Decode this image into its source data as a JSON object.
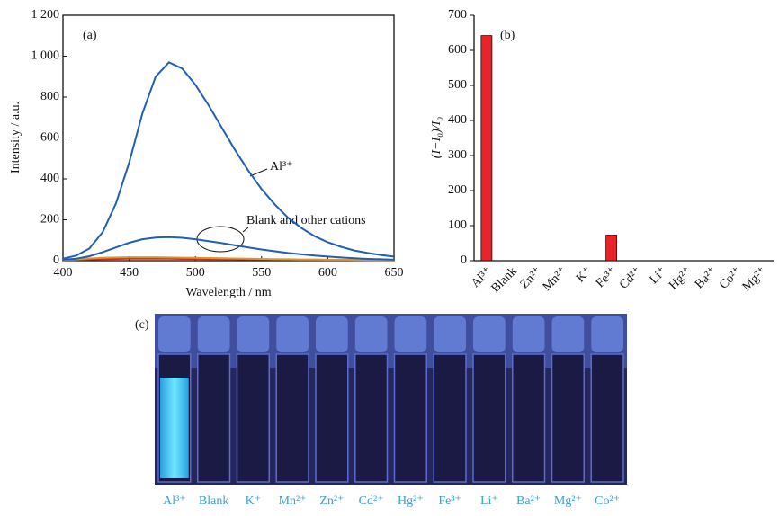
{
  "chart_data": [
    {
      "type": "line",
      "panel_label": "(a)",
      "xlabel": "Wavelength / nm",
      "ylabel": "Intensity / a.u.",
      "x": [
        400,
        410,
        420,
        430,
        440,
        450,
        460,
        470,
        480,
        490,
        500,
        510,
        520,
        530,
        540,
        550,
        560,
        570,
        580,
        590,
        600,
        610,
        620,
        630,
        640,
        650
      ],
      "series": [
        {
          "color": "#1f5fb4",
          "values": [
            10,
            25,
            60,
            140,
            280,
            480,
            720,
            900,
            970,
            940,
            860,
            760,
            650,
            540,
            440,
            350,
            275,
            210,
            160,
            120,
            90,
            68,
            50,
            38,
            28,
            20
          ]
        },
        {
          "color": "#1f5fb4",
          "values": [
            5,
            10,
            22,
            42,
            65,
            88,
            105,
            113,
            115,
            112,
            105,
            96,
            86,
            75,
            65,
            55,
            46,
            38,
            31,
            25,
            20,
            16,
            12,
            9,
            7,
            5
          ]
        },
        {
          "color": "#e0952a",
          "values": [
            4,
            7,
            11,
            14,
            16,
            17,
            17,
            17,
            16,
            15,
            14,
            13,
            12,
            11,
            10,
            9,
            8,
            7,
            6,
            6,
            5,
            5,
            4,
            4,
            3,
            3
          ]
        },
        {
          "color": "#c0302a",
          "values": [
            2,
            4,
            6,
            8,
            9,
            10,
            10,
            10,
            10,
            9,
            9,
            8,
            8,
            7,
            6,
            6,
            5,
            5,
            4,
            4,
            3,
            3,
            3,
            2,
            2,
            2
          ]
        }
      ],
      "annotations": [
        "Al³⁺",
        "Blank and other cations"
      ],
      "xlim": [
        400,
        650
      ],
      "xticks": [
        400,
        450,
        500,
        550,
        600,
        650
      ],
      "ylim": [
        0,
        1200
      ],
      "yticks": [
        0,
        200,
        400,
        600,
        800,
        {
          "value": 1000,
          "label": "1 000"
        },
        {
          "value": 1200,
          "label": "1 200"
        }
      ]
    },
    {
      "type": "bar",
      "panel_label": "(b)",
      "ylabel": "(I−I₀)/I₀",
      "color": "#e8242a",
      "categories": [
        "Al³⁺",
        "Blank",
        "Zn²⁺",
        "Mn²⁺",
        "K⁺",
        "Fe³⁺",
        "Cd²⁺",
        "Li⁺",
        "Hg²⁺",
        "Ba²⁺",
        "Co²⁺",
        "Mg²⁺"
      ],
      "values": [
        642,
        0,
        0,
        0,
        0,
        73,
        0,
        0,
        0,
        0,
        0,
        0
      ],
      "ylim": [
        0,
        700
      ],
      "yticks": [
        0,
        100,
        200,
        300,
        400,
        500,
        600,
        700
      ]
    }
  ],
  "photo": {
    "panel_label": "(c)",
    "vials": [
      "Al³⁺",
      "Blank",
      "K⁺",
      "Mn²⁺",
      "Zn²⁺",
      "Cd²⁺",
      "Hg²⁺",
      "Fe³⁺",
      "Li⁺",
      "Ba²⁺",
      "Mg²⁺",
      "Co²⁺"
    ]
  }
}
